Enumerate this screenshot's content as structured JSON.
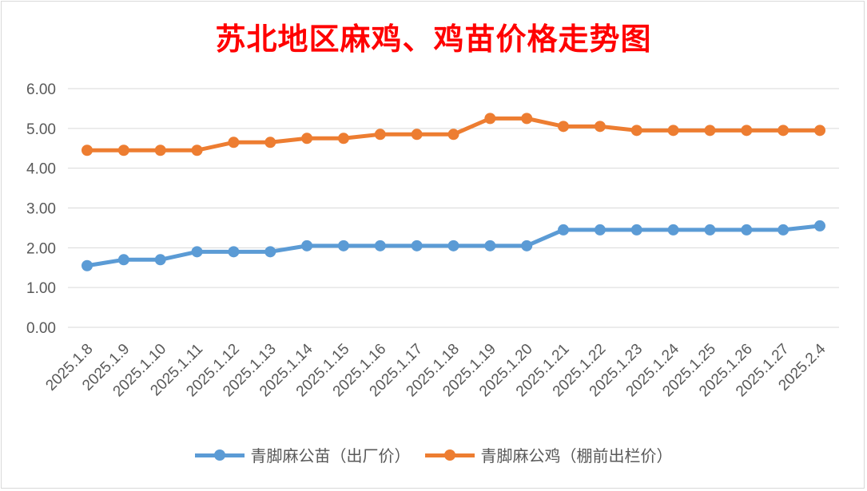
{
  "chart_data": {
    "type": "line",
    "title": "苏北地区麻鸡、鸡苗价格走势图",
    "categories": [
      "2025.1.8",
      "2025.1.9",
      "2025.1.10",
      "2025.1.11",
      "2025.1.12",
      "2025.1.13",
      "2025.1.14",
      "2025.1.15",
      "2025.1.16",
      "2025.1.17",
      "2025.1.18",
      "2025.1.19",
      "2025.1.20",
      "2025.1.21",
      "2025.1.22",
      "2025.1.23",
      "2025.1.24",
      "2025.1.25",
      "2025.1.26",
      "2025.1.27",
      "2025.2.4"
    ],
    "series": [
      {
        "name": "青脚麻公苗（出厂价）",
        "color": "#5b9bd5",
        "values": [
          1.55,
          1.7,
          1.7,
          1.9,
          1.9,
          1.9,
          2.05,
          2.05,
          2.05,
          2.05,
          2.05,
          2.05,
          2.05,
          2.45,
          2.45,
          2.45,
          2.45,
          2.45,
          2.45,
          2.45,
          2.55
        ]
      },
      {
        "name": "青脚麻公鸡（棚前出栏价）",
        "color": "#ed7d31",
        "values": [
          4.45,
          4.45,
          4.45,
          4.45,
          4.65,
          4.65,
          4.75,
          4.75,
          4.85,
          4.85,
          4.85,
          5.25,
          5.25,
          5.05,
          5.05,
          4.95,
          4.95,
          4.95,
          4.95,
          4.95,
          4.95
        ]
      }
    ],
    "yticks": [
      "0.00",
      "1.00",
      "2.00",
      "3.00",
      "4.00",
      "5.00",
      "6.00"
    ],
    "ylim": [
      0,
      6
    ],
    "grid": true,
    "legend_position": "bottom"
  }
}
